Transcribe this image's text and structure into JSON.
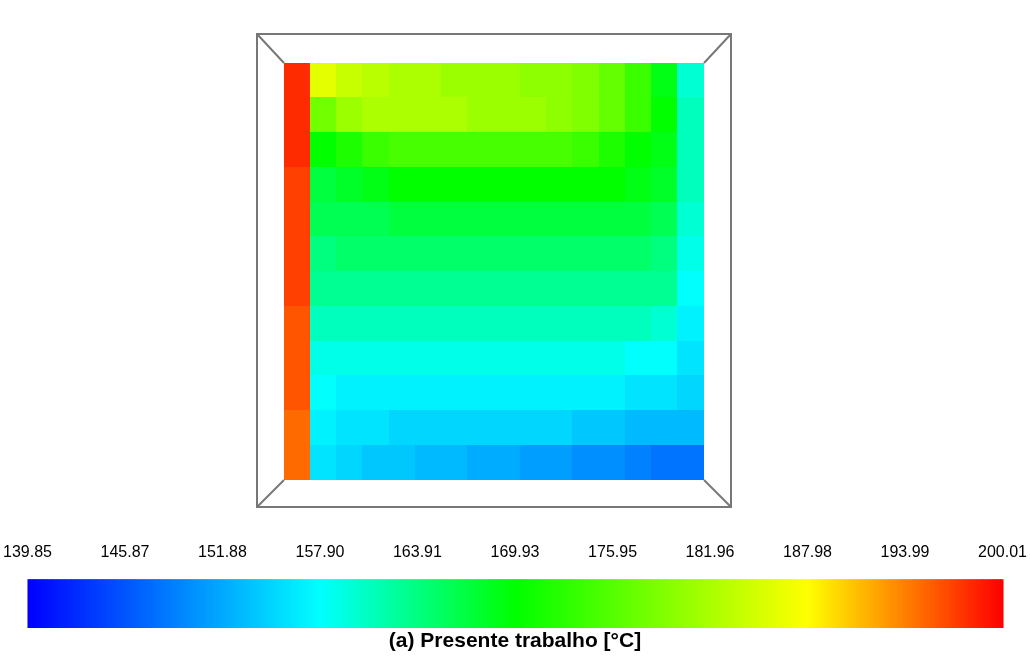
{
  "chart_data": {
    "type": "heatmap",
    "clabel": "(a) Presente trabalho [°C]",
    "categories": [
      null,
      null,
      null,
      null,
      null,
      null,
      null,
      null,
      null,
      null,
      null,
      null,
      null,
      null,
      null,
      null
    ],
    "y_categories": [
      null,
      null,
      null,
      null,
      null,
      null,
      null,
      null,
      null,
      null,
      null,
      null
    ],
    "clim": [
      139.85,
      200.01
    ],
    "cticks": [
      139.85,
      145.87,
      151.88,
      {
        "value": 157.9,
        "label": "157.90"
      },
      163.91,
      169.93,
      175.95,
      181.96,
      187.98,
      193.99,
      200.01
    ],
    "cells": [
      [
        198,
        186,
        184,
        183,
        182,
        182,
        181,
        181,
        181,
        180,
        180,
        179,
        177,
        174,
        169,
        160
      ],
      [
        198,
        178,
        181,
        182,
        182,
        182,
        182,
        181,
        181,
        181,
        180,
        179,
        177,
        174,
        170,
        161
      ],
      [
        198,
        170,
        172,
        174,
        175,
        175,
        175,
        175,
        175,
        175,
        175,
        174,
        172,
        170,
        169,
        161
      ],
      [
        197,
        167,
        168,
        169,
        170,
        170,
        170,
        170,
        170,
        170,
        170,
        170,
        170,
        169,
        168,
        161
      ],
      [
        197,
        166,
        166,
        166,
        167,
        167,
        167,
        167,
        167,
        167,
        167,
        167,
        167,
        167,
        166,
        160
      ],
      [
        197,
        164,
        165,
        165,
        165,
        165,
        165,
        165,
        165,
        165,
        165,
        165,
        165,
        165,
        164,
        159
      ],
      [
        197,
        163,
        163,
        163,
        163,
        163,
        163,
        163,
        163,
        163,
        163,
        163,
        163,
        163,
        163,
        158
      ],
      [
        196,
        161,
        161,
        161,
        161,
        161,
        161,
        161,
        161,
        161,
        161,
        161,
        161,
        161,
        160,
        157
      ],
      [
        196,
        159,
        159,
        159,
        159,
        159,
        159,
        159,
        159,
        159,
        159,
        159,
        159,
        158,
        158,
        156
      ],
      [
        196,
        158,
        157,
        157,
        157,
        157,
        157,
        157,
        157,
        157,
        157,
        157,
        157,
        156,
        156,
        155
      ],
      [
        195,
        157,
        156,
        156,
        155,
        155,
        155,
        155,
        155,
        155,
        155,
        154,
        154,
        153,
        153,
        153
      ],
      [
        195,
        156,
        155,
        154,
        154,
        153,
        153,
        152,
        152,
        151,
        151,
        150,
        150,
        149,
        148,
        148
      ]
    ]
  }
}
